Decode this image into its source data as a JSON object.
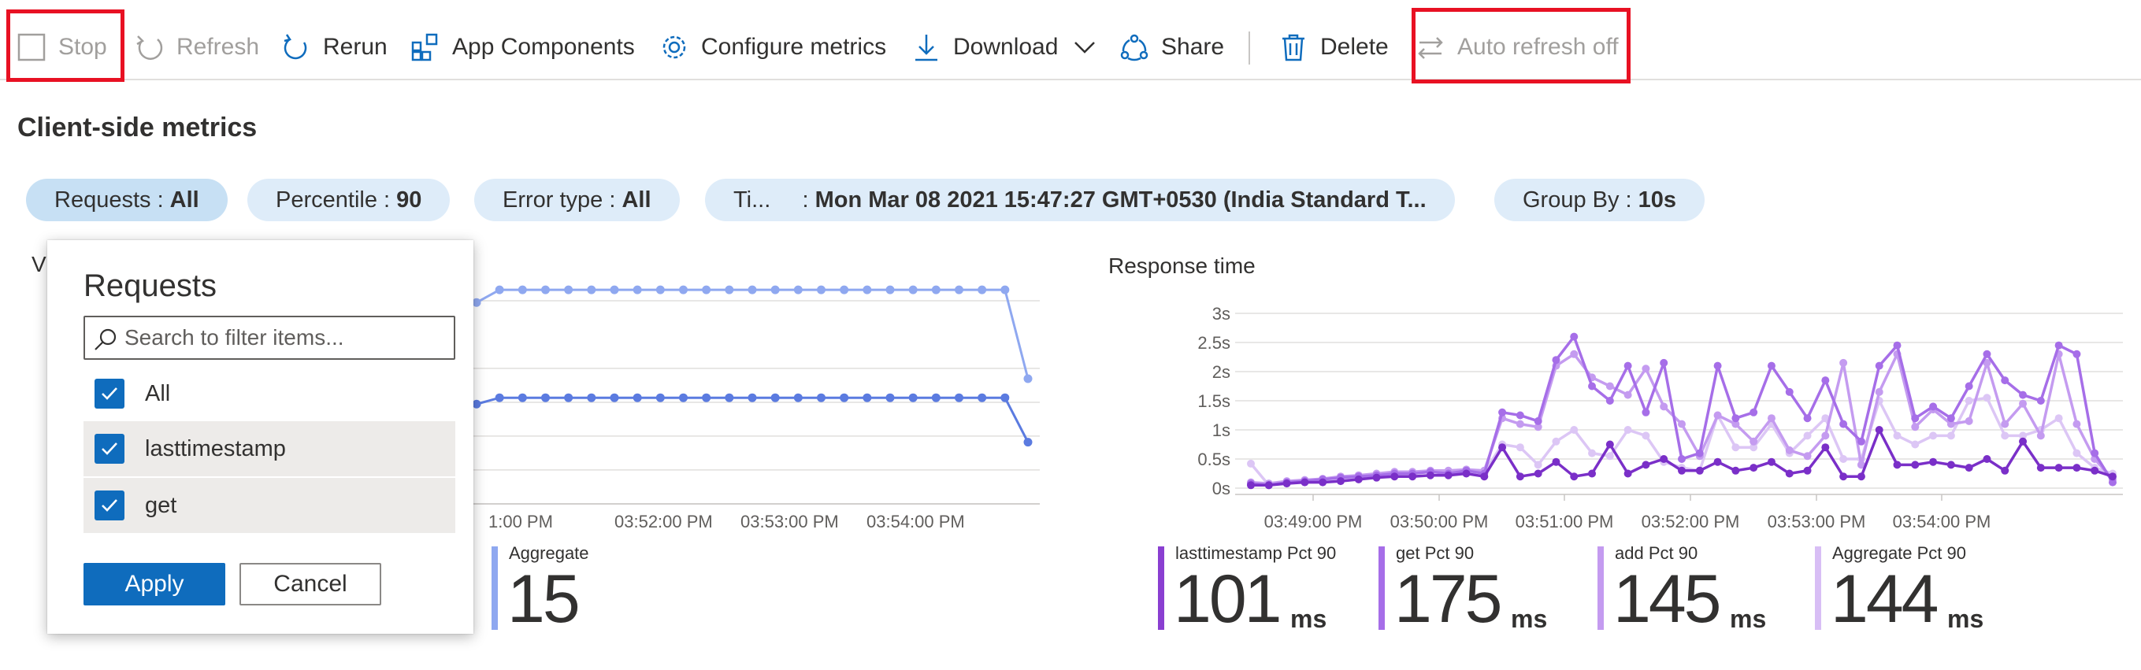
{
  "toolbar": {
    "stop": "Stop",
    "refresh": "Refresh",
    "rerun": "Rerun",
    "app_components": "App Components",
    "configure_metrics": "Configure metrics",
    "download": "Download",
    "share": "Share",
    "delete": "Delete",
    "auto_refresh": "Auto refresh off"
  },
  "section_title": "Client-side metrics",
  "filters": [
    {
      "label": "Requests :",
      "value": "All"
    },
    {
      "label": "Percentile :",
      "value": "90"
    },
    {
      "label": "Error type :",
      "value": "All"
    },
    {
      "label": "Ti...     :",
      "value": "Mon Mar 08 2021 15:47:27 GMT+0530 (India Standard T..."
    },
    {
      "label": "Group By :",
      "value": "10s"
    }
  ],
  "requests_panel": {
    "title": "Requests",
    "search_placeholder": "Search to filter items...",
    "options": [
      "All",
      "lasttimestamp",
      "get"
    ],
    "apply": "Apply",
    "cancel": "Cancel"
  },
  "left_chart": {
    "partial_title": "V",
    "x_ticks": [
      "1:00 PM",
      "03:52:00 PM",
      "03:53:00 PM",
      "03:54:00 PM"
    ],
    "stat_label": "Aggregate",
    "stat_value": "15"
  },
  "right_chart": {
    "title": "Response time",
    "y_ticks": [
      "3s",
      "2.5s",
      "2s",
      "1.5s",
      "1s",
      "0.5s",
      "0s"
    ],
    "x_ticks": [
      "03:49:00 PM",
      "03:50:00 PM",
      "03:51:00 PM",
      "03:52:00 PM",
      "03:53:00 PM",
      "03:54:00 PM"
    ],
    "stats": [
      {
        "label": "lasttimestamp Pct 90",
        "value": "101",
        "unit": "ms",
        "color": "#8a3fd1"
      },
      {
        "label": "get Pct 90",
        "value": "175",
        "unit": "ms",
        "color": "#a66ee8"
      },
      {
        "label": "add Pct 90",
        "value": "145",
        "unit": "ms",
        "color": "#c49bf0"
      },
      {
        "label": "Aggregate Pct 90",
        "value": "144",
        "unit": "ms",
        "color": "#d8bef5"
      }
    ]
  },
  "chart_data": [
    {
      "type": "line",
      "title": "",
      "x": [
        "03:51:15",
        "03:51:25",
        "03:51:35",
        "03:51:45",
        "03:51:55",
        "03:52:05",
        "03:52:15",
        "03:52:25",
        "03:52:35",
        "03:52:45",
        "03:52:55",
        "03:53:05",
        "03:53:15",
        "03:53:25",
        "03:53:35",
        "03:53:45",
        "03:53:55",
        "03:54:05",
        "03:54:15",
        "03:54:25",
        "03:54:35",
        "03:54:45",
        "03:54:55",
        "03:55:05",
        "03:55:15"
      ],
      "series": [
        {
          "name": "Aggregate",
          "values": [
            14,
            15,
            15,
            15,
            15,
            15,
            15,
            15,
            15,
            15,
            15,
            15,
            15,
            15,
            15,
            15,
            15,
            15,
            15,
            15,
            15,
            15,
            15,
            15,
            8
          ],
          "color": "#8fa8f0"
        },
        {
          "values": [
            6,
            6.5,
            6.5,
            6.5,
            6.5,
            6.5,
            6.5,
            6.5,
            6.5,
            6.5,
            6.5,
            6.5,
            6.5,
            6.5,
            6.5,
            6.5,
            6.5,
            6.5,
            6.5,
            6.5,
            6.5,
            6.5,
            6.5,
            6.5,
            3
          ],
          "color": "#5b7be0"
        }
      ]
    },
    {
      "type": "line",
      "title": "Response time",
      "ylim": [
        0,
        3
      ],
      "x_ticks": [
        "03:49:00 PM",
        "03:50:00 PM",
        "03:51:00 PM",
        "03:52:00 PM",
        "03:53:00 PM",
        "03:54:00 PM"
      ],
      "series": [
        {
          "name": "lasttimestamp Pct 90",
          "color": "#7a2fc8",
          "values": [
            0.05,
            0.05,
            0.08,
            0.1,
            0.1,
            0.12,
            0.15,
            0.18,
            0.2,
            0.2,
            0.22,
            0.22,
            0.25,
            0.2,
            0.7,
            0.2,
            0.25,
            0.45,
            0.2,
            0.25,
            0.75,
            0.25,
            0.4,
            0.5,
            0.3,
            0.3,
            0.45,
            0.3,
            0.35,
            0.45,
            0.25,
            0.3,
            0.7,
            0.2,
            0.2,
            1.0,
            0.4,
            0.4,
            0.45,
            0.4,
            0.35,
            0.5,
            0.3,
            0.8,
            0.35,
            0.35,
            0.35,
            0.3,
            0.2
          ]
        },
        {
          "name": "get Pct 90",
          "color": "#a66ee8",
          "values": [
            0.08,
            0.05,
            0.1,
            0.12,
            0.15,
            0.18,
            0.2,
            0.22,
            0.25,
            0.25,
            0.28,
            0.25,
            0.3,
            0.25,
            1.3,
            1.25,
            1.15,
            2.2,
            2.6,
            1.75,
            1.5,
            2.1,
            1.3,
            2.15,
            0.5,
            0.6,
            2.1,
            1.2,
            1.3,
            2.1,
            1.65,
            1.2,
            1.85,
            1.1,
            0.8,
            2.1,
            2.45,
            1.2,
            1.4,
            1.2,
            1.75,
            2.3,
            1.85,
            1.6,
            1.5,
            2.45,
            2.3,
            0.6,
            0.1
          ]
        },
        {
          "name": "add Pct 90",
          "color": "#c49bf0",
          "values": [
            0.1,
            0.08,
            0.12,
            0.14,
            0.16,
            0.2,
            0.22,
            0.25,
            0.28,
            0.28,
            0.3,
            0.3,
            0.32,
            0.3,
            1.2,
            1.1,
            1.05,
            2.1,
            2.3,
            1.9,
            1.75,
            1.6,
            2.05,
            1.4,
            1.1,
            0.55,
            1.25,
            1.1,
            0.8,
            1.2,
            0.65,
            0.55,
            0.9,
            2.15,
            0.4,
            1.65,
            2.3,
            1.05,
            1.35,
            1.1,
            1.15,
            2.15,
            1.1,
            1.45,
            0.9,
            2.3,
            1.1,
            0.5,
            0.15
          ]
        },
        {
          "name": "Aggregate Pct 90",
          "color": "#dcc6f5",
          "values": [
            0.42,
            0.05,
            0.1,
            0.12,
            0.14,
            0.16,
            0.2,
            0.22,
            0.25,
            0.25,
            0.28,
            0.27,
            0.3,
            0.27,
            0.75,
            0.7,
            0.4,
            0.8,
            1.0,
            0.6,
            0.55,
            1.0,
            0.9,
            0.45,
            0.35,
            0.3,
            1.25,
            0.7,
            0.7,
            1.1,
            0.6,
            0.9,
            1.2,
            0.5,
            0.5,
            1.5,
            0.9,
            0.75,
            0.9,
            0.9,
            1.5,
            1.55,
            0.9,
            0.9,
            1.0,
            1.2,
            0.6,
            0.35,
            0.25
          ]
        }
      ]
    }
  ]
}
